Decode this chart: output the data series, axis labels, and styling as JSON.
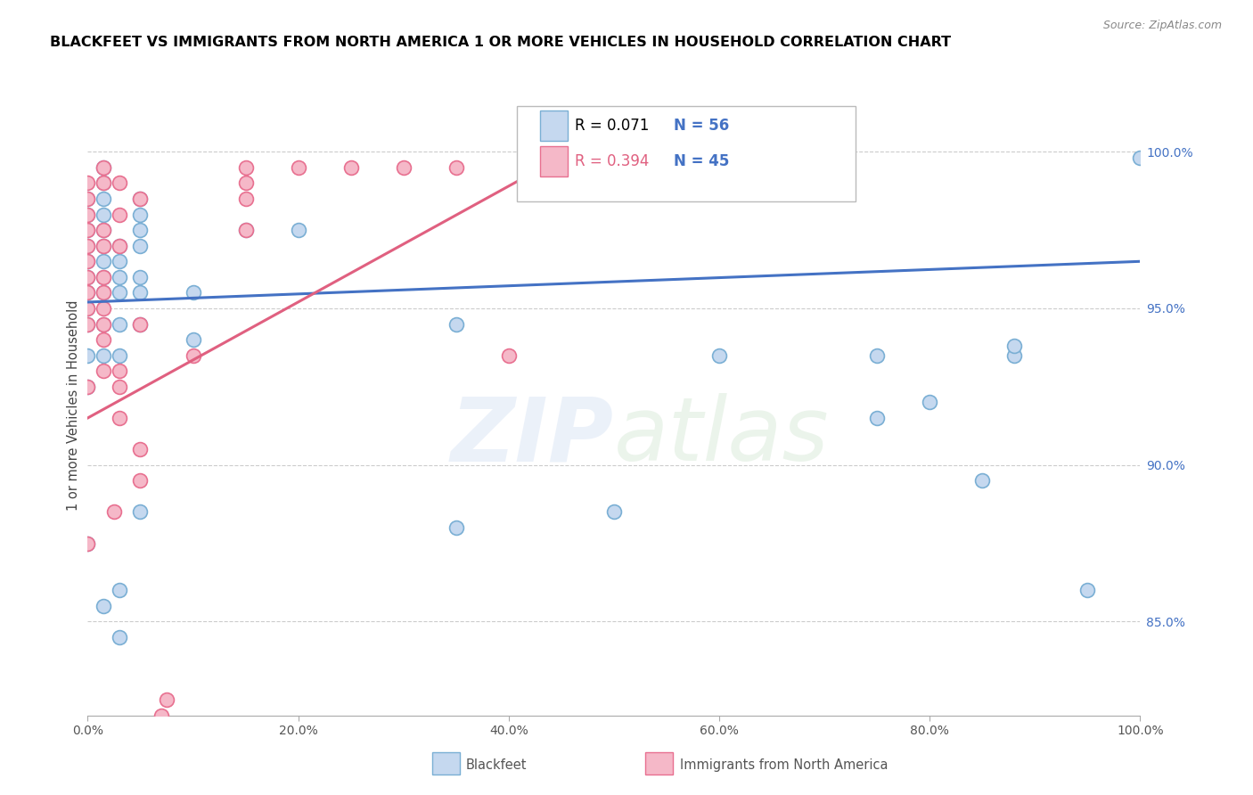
{
  "title": "BLACKFEET VS IMMIGRANTS FROM NORTH AMERICA 1 OR MORE VEHICLES IN HOUSEHOLD CORRELATION CHART",
  "source": "Source: ZipAtlas.com",
  "ylabel": "1 or more Vehicles in Household",
  "ytick_labels": [
    "85.0%",
    "90.0%",
    "95.0%",
    "100.0%"
  ],
  "ytick_values": [
    85.0,
    90.0,
    95.0,
    100.0
  ],
  "xmin": 0.0,
  "xmax": 100.0,
  "ymin": 82.0,
  "ymax": 101.8,
  "legend_blue_r": "R = 0.071",
  "legend_blue_n": "N = 56",
  "legend_pink_r": "R = 0.394",
  "legend_pink_n": "N = 45",
  "legend_label_blue": "Blackfeet",
  "legend_label_pink": "Immigrants from North America",
  "blue_color": "#c5d8ef",
  "pink_color": "#f5b8c8",
  "blue_edge": "#7aafd4",
  "pink_edge": "#e87090",
  "trendline_blue": "#4472c4",
  "trendline_pink": "#e06080",
  "blue_scatter": [
    [
      0.0,
      87.5
    ],
    [
      0.0,
      92.5
    ],
    [
      0.0,
      93.5
    ],
    [
      0.0,
      94.5
    ],
    [
      0.0,
      95.0
    ],
    [
      0.0,
      95.5
    ],
    [
      0.0,
      96.0
    ],
    [
      0.0,
      96.5
    ],
    [
      0.0,
      97.0
    ],
    [
      0.0,
      97.5
    ],
    [
      0.0,
      98.0
    ],
    [
      0.0,
      98.5
    ],
    [
      1.5,
      85.5
    ],
    [
      1.5,
      93.5
    ],
    [
      1.5,
      94.5
    ],
    [
      1.5,
      95.5
    ],
    [
      1.5,
      96.0
    ],
    [
      1.5,
      96.5
    ],
    [
      1.5,
      97.0
    ],
    [
      1.5,
      97.5
    ],
    [
      1.5,
      98.0
    ],
    [
      1.5,
      98.5
    ],
    [
      1.5,
      99.0
    ],
    [
      1.5,
      99.5
    ],
    [
      3.0,
      84.5
    ],
    [
      3.0,
      86.0
    ],
    [
      3.0,
      93.5
    ],
    [
      3.0,
      94.5
    ],
    [
      3.0,
      95.5
    ],
    [
      3.0,
      96.0
    ],
    [
      3.0,
      96.5
    ],
    [
      3.0,
      97.0
    ],
    [
      5.0,
      88.5
    ],
    [
      5.0,
      94.5
    ],
    [
      5.0,
      95.5
    ],
    [
      5.0,
      96.0
    ],
    [
      5.0,
      97.0
    ],
    [
      5.0,
      97.5
    ],
    [
      5.0,
      98.0
    ],
    [
      5.0,
      98.5
    ],
    [
      10.0,
      94.0
    ],
    [
      10.0,
      95.5
    ],
    [
      15.0,
      97.5
    ],
    [
      20.0,
      97.5
    ],
    [
      35.0,
      88.0
    ],
    [
      35.0,
      94.5
    ],
    [
      50.0,
      88.5
    ],
    [
      60.0,
      93.5
    ],
    [
      75.0,
      91.5
    ],
    [
      75.0,
      93.5
    ],
    [
      80.0,
      92.0
    ],
    [
      85.0,
      89.5
    ],
    [
      88.0,
      93.5
    ],
    [
      88.0,
      93.8
    ],
    [
      95.0,
      86.0
    ],
    [
      100.0,
      99.8
    ]
  ],
  "pink_scatter": [
    [
      0.0,
      87.5
    ],
    [
      0.0,
      92.5
    ],
    [
      0.0,
      94.5
    ],
    [
      0.0,
      95.0
    ],
    [
      0.0,
      95.5
    ],
    [
      0.0,
      96.0
    ],
    [
      0.0,
      96.5
    ],
    [
      0.0,
      97.0
    ],
    [
      0.0,
      97.5
    ],
    [
      0.0,
      98.0
    ],
    [
      0.0,
      98.5
    ],
    [
      0.0,
      99.0
    ],
    [
      1.5,
      93.0
    ],
    [
      1.5,
      94.0
    ],
    [
      1.5,
      94.5
    ],
    [
      1.5,
      95.0
    ],
    [
      1.5,
      95.5
    ],
    [
      1.5,
      96.0
    ],
    [
      1.5,
      97.0
    ],
    [
      1.5,
      97.5
    ],
    [
      1.5,
      99.0
    ],
    [
      1.5,
      99.5
    ],
    [
      2.5,
      88.5
    ],
    [
      3.0,
      91.5
    ],
    [
      3.0,
      92.5
    ],
    [
      3.0,
      93.0
    ],
    [
      3.0,
      97.0
    ],
    [
      3.0,
      98.0
    ],
    [
      3.0,
      99.0
    ],
    [
      5.0,
      89.5
    ],
    [
      5.0,
      90.5
    ],
    [
      5.0,
      94.5
    ],
    [
      5.0,
      98.5
    ],
    [
      10.0,
      93.5
    ],
    [
      15.0,
      97.5
    ],
    [
      15.0,
      98.5
    ],
    [
      15.0,
      99.0
    ],
    [
      15.0,
      99.5
    ],
    [
      20.0,
      99.5
    ],
    [
      25.0,
      99.5
    ],
    [
      30.0,
      99.5
    ],
    [
      35.0,
      99.5
    ],
    [
      40.0,
      93.5
    ],
    [
      7.0,
      82.0
    ],
    [
      7.5,
      82.5
    ]
  ],
  "blue_trend_x": [
    0.0,
    100.0
  ],
  "blue_trend_y": [
    95.2,
    96.5
  ],
  "pink_trend_x": [
    0.0,
    47.0
  ],
  "pink_trend_y": [
    91.5,
    100.2
  ]
}
